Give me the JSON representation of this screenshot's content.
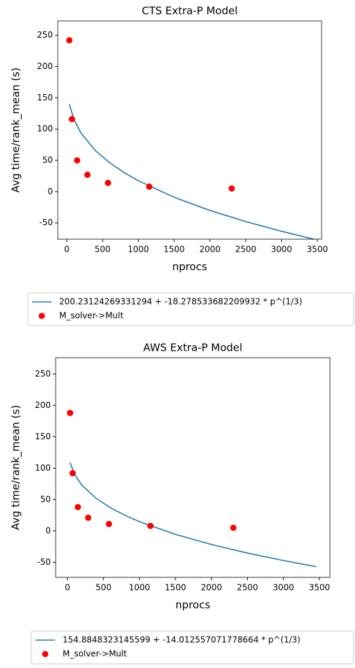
{
  "chart_data": [
    {
      "type": "scatter",
      "title": "CTS Extra-P Model",
      "x_label": "nprocs",
      "y_label": "Avg time/rank_mean (s)",
      "xlim": [
        -126,
        3560
      ],
      "ylim": [
        -76,
        273
      ],
      "xticks": [
        0,
        500,
        1000,
        1500,
        2000,
        2500,
        3000,
        3500
      ],
      "yticks": [
        -50,
        0,
        50,
        100,
        150,
        200,
        250
      ],
      "series": [
        {
          "name": "200.23124269331294 + -18.278533682209932 * p^(1/3)",
          "type": "line",
          "color": "#1f77b4",
          "x": [
            36,
            100,
            200,
            400,
            600,
            800,
            1000,
            1500,
            2000,
            2500,
            3000,
            3456
          ],
          "values": [
            139.88,
            115.39,
            93.34,
            65.55,
            46.06,
            30.55,
            17.44,
            -9.01,
            -30.07,
            -47.85,
            -63.39,
            -76.13
          ]
        },
        {
          "name": "M_solver->Mult",
          "type": "scatter",
          "color": "#ff0000",
          "x": [
            36,
            72,
            144,
            288,
            576,
            1152,
            2304
          ],
          "values": [
            242,
            116,
            50,
            27,
            14,
            8,
            5
          ]
        }
      ]
    },
    {
      "type": "scatter",
      "title": "AWS Extra-P Model",
      "x_label": "nprocs",
      "y_label": "Avg time/rank_mean (s)",
      "xlim": [
        -164,
        3646
      ],
      "ylim": [
        -74,
        276
      ],
      "xticks": [
        0,
        500,
        1000,
        1500,
        2000,
        2500,
        3000,
        3500
      ],
      "yticks": [
        -50,
        0,
        50,
        100,
        150,
        200,
        250
      ],
      "series": [
        {
          "name": "154.8848323145599 + -14.012557071778664 * p^(1/3)",
          "type": "line",
          "color": "#1f77b4",
          "x": [
            36,
            100,
            200,
            400,
            600,
            800,
            1000,
            1500,
            2000,
            2500,
            3000,
            3456
          ],
          "values": [
            108.62,
            89.84,
            72.94,
            51.64,
            36.7,
            24.8,
            14.76,
            -5.52,
            -21.66,
            -35.3,
            -47.21,
            -56.98
          ]
        },
        {
          "name": "M_solver->Mult",
          "type": "scatter",
          "color": "#ff0000",
          "x": [
            36,
            72,
            144,
            288,
            576,
            1152,
            2304
          ],
          "values": [
            188,
            92,
            38,
            21,
            11,
            8,
            5
          ]
        }
      ]
    }
  ]
}
